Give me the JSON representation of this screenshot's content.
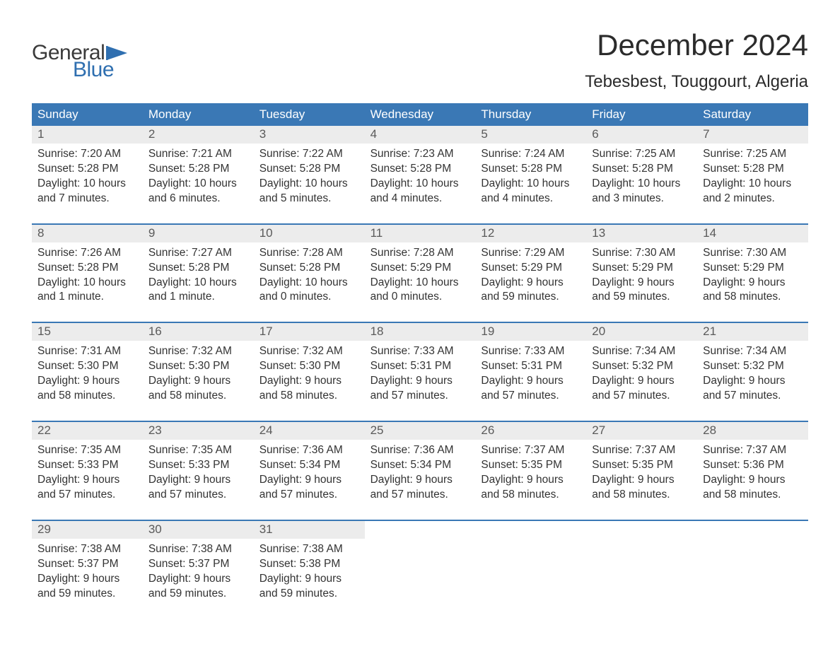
{
  "brand": {
    "line1": "General",
    "line2": "Blue",
    "flag_color": "#2f6fb0",
    "text_dark": "#3a3a3a"
  },
  "title": "December 2024",
  "location": "Tebesbest, Touggourt, Algeria",
  "style": {
    "header_bg": "#3a78b5",
    "header_fg": "#ffffff",
    "date_strip_bg": "#ececec",
    "date_strip_fg": "#5a5a5a",
    "body_fg": "#333333",
    "week_border": "#3a78b5",
    "page_bg": "#ffffff",
    "month_title_fontsize": 42,
    "location_fontsize": 24,
    "dayheader_fontsize": 17,
    "date_fontsize": 17,
    "body_fontsize": 15.5
  },
  "day_names": [
    "Sunday",
    "Monday",
    "Tuesday",
    "Wednesday",
    "Thursday",
    "Friday",
    "Saturday"
  ],
  "weeks": [
    [
      {
        "d": "1",
        "sr": "7:20 AM",
        "ss": "5:28 PM",
        "dl": "10 hours and 7 minutes."
      },
      {
        "d": "2",
        "sr": "7:21 AM",
        "ss": "5:28 PM",
        "dl": "10 hours and 6 minutes."
      },
      {
        "d": "3",
        "sr": "7:22 AM",
        "ss": "5:28 PM",
        "dl": "10 hours and 5 minutes."
      },
      {
        "d": "4",
        "sr": "7:23 AM",
        "ss": "5:28 PM",
        "dl": "10 hours and 4 minutes."
      },
      {
        "d": "5",
        "sr": "7:24 AM",
        "ss": "5:28 PM",
        "dl": "10 hours and 4 minutes."
      },
      {
        "d": "6",
        "sr": "7:25 AM",
        "ss": "5:28 PM",
        "dl": "10 hours and 3 minutes."
      },
      {
        "d": "7",
        "sr": "7:25 AM",
        "ss": "5:28 PM",
        "dl": "10 hours and 2 minutes."
      }
    ],
    [
      {
        "d": "8",
        "sr": "7:26 AM",
        "ss": "5:28 PM",
        "dl": "10 hours and 1 minute."
      },
      {
        "d": "9",
        "sr": "7:27 AM",
        "ss": "5:28 PM",
        "dl": "10 hours and 1 minute."
      },
      {
        "d": "10",
        "sr": "7:28 AM",
        "ss": "5:28 PM",
        "dl": "10 hours and 0 minutes."
      },
      {
        "d": "11",
        "sr": "7:28 AM",
        "ss": "5:29 PM",
        "dl": "10 hours and 0 minutes."
      },
      {
        "d": "12",
        "sr": "7:29 AM",
        "ss": "5:29 PM",
        "dl": "9 hours and 59 minutes."
      },
      {
        "d": "13",
        "sr": "7:30 AM",
        "ss": "5:29 PM",
        "dl": "9 hours and 59 minutes."
      },
      {
        "d": "14",
        "sr": "7:30 AM",
        "ss": "5:29 PM",
        "dl": "9 hours and 58 minutes."
      }
    ],
    [
      {
        "d": "15",
        "sr": "7:31 AM",
        "ss": "5:30 PM",
        "dl": "9 hours and 58 minutes."
      },
      {
        "d": "16",
        "sr": "7:32 AM",
        "ss": "5:30 PM",
        "dl": "9 hours and 58 minutes."
      },
      {
        "d": "17",
        "sr": "7:32 AM",
        "ss": "5:30 PM",
        "dl": "9 hours and 58 minutes."
      },
      {
        "d": "18",
        "sr": "7:33 AM",
        "ss": "5:31 PM",
        "dl": "9 hours and 57 minutes."
      },
      {
        "d": "19",
        "sr": "7:33 AM",
        "ss": "5:31 PM",
        "dl": "9 hours and 57 minutes."
      },
      {
        "d": "20",
        "sr": "7:34 AM",
        "ss": "5:32 PM",
        "dl": "9 hours and 57 minutes."
      },
      {
        "d": "21",
        "sr": "7:34 AM",
        "ss": "5:32 PM",
        "dl": "9 hours and 57 minutes."
      }
    ],
    [
      {
        "d": "22",
        "sr": "7:35 AM",
        "ss": "5:33 PM",
        "dl": "9 hours and 57 minutes."
      },
      {
        "d": "23",
        "sr": "7:35 AM",
        "ss": "5:33 PM",
        "dl": "9 hours and 57 minutes."
      },
      {
        "d": "24",
        "sr": "7:36 AM",
        "ss": "5:34 PM",
        "dl": "9 hours and 57 minutes."
      },
      {
        "d": "25",
        "sr": "7:36 AM",
        "ss": "5:34 PM",
        "dl": "9 hours and 57 minutes."
      },
      {
        "d": "26",
        "sr": "7:37 AM",
        "ss": "5:35 PM",
        "dl": "9 hours and 58 minutes."
      },
      {
        "d": "27",
        "sr": "7:37 AM",
        "ss": "5:35 PM",
        "dl": "9 hours and 58 minutes."
      },
      {
        "d": "28",
        "sr": "7:37 AM",
        "ss": "5:36 PM",
        "dl": "9 hours and 58 minutes."
      }
    ],
    [
      {
        "d": "29",
        "sr": "7:38 AM",
        "ss": "5:37 PM",
        "dl": "9 hours and 59 minutes."
      },
      {
        "d": "30",
        "sr": "7:38 AM",
        "ss": "5:37 PM",
        "dl": "9 hours and 59 minutes."
      },
      {
        "d": "31",
        "sr": "7:38 AM",
        "ss": "5:38 PM",
        "dl": "9 hours and 59 minutes."
      },
      null,
      null,
      null,
      null
    ]
  ],
  "labels": {
    "sunrise": "Sunrise: ",
    "sunset": "Sunset: ",
    "daylight": "Daylight: "
  }
}
